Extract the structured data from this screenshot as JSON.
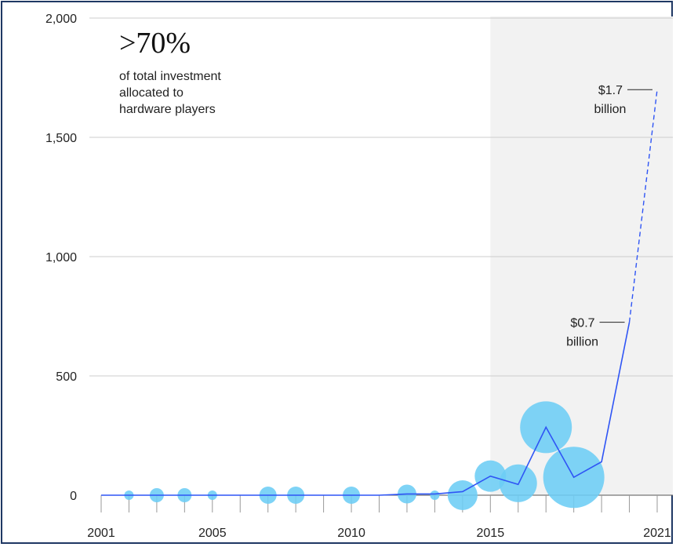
{
  "chart_data": {
    "type": "line",
    "title": "",
    "xlabel": "",
    "ylabel": "",
    "x": [
      2001,
      2002,
      2003,
      2004,
      2005,
      2006,
      2007,
      2008,
      2009,
      2010,
      2011,
      2012,
      2013,
      2014,
      2015,
      2016,
      2017,
      2018,
      2019,
      2020,
      2021
    ],
    "series": [
      {
        "values": [
          0,
          0,
          0,
          0,
          0,
          0,
          0,
          0,
          0,
          0,
          0,
          5,
          5,
          15,
          80,
          45,
          285,
          75,
          140,
          725,
          1700
        ]
      }
    ],
    "dashed_from_x": 2020,
    "bubbles": [
      {
        "x": 2002,
        "y": 0,
        "r": 6
      },
      {
        "x": 2003,
        "y": 0,
        "r": 9
      },
      {
        "x": 2004,
        "y": 0,
        "r": 9
      },
      {
        "x": 2005,
        "y": 0,
        "r": 6
      },
      {
        "x": 2007,
        "y": 0,
        "r": 11
      },
      {
        "x": 2008,
        "y": 0,
        "r": 11
      },
      {
        "x": 2010,
        "y": 0,
        "r": 11
      },
      {
        "x": 2012,
        "y": 5,
        "r": 12
      },
      {
        "x": 2013,
        "y": 0,
        "r": 6
      },
      {
        "x": 2014,
        "y": 0,
        "r": 19
      },
      {
        "x": 2015,
        "y": 80,
        "r": 20
      },
      {
        "x": 2016,
        "y": 50,
        "r": 24
      },
      {
        "x": 2017,
        "y": 285,
        "r": 33
      },
      {
        "x": 2018,
        "y": 75,
        "r": 39
      }
    ],
    "xticks": [
      "2001",
      "2005",
      "2010",
      "2015",
      "2021"
    ],
    "yticks": [
      "2,000",
      "1,500",
      "1,000",
      "500",
      "0"
    ],
    "ylim": [
      0,
      2000
    ],
    "xlim": [
      2001,
      2021
    ],
    "shaded_from_x": 2015,
    "grid": true,
    "colors": {
      "line": "#2f55f5",
      "bubble": "#6ccdf5",
      "shade": "#f2f2f2",
      "grid": "#cccccc",
      "frame": "#1f3864"
    }
  },
  "headline": {
    "value": ">70%",
    "lines": [
      "of total investment",
      "allocated to",
      "hardware players"
    ]
  },
  "annotations": [
    {
      "x": 2021,
      "y": 1700,
      "value": "$1.7",
      "unit": "billion"
    },
    {
      "x": 2020,
      "y": 725,
      "value": "$0.7",
      "unit": "billion"
    }
  ]
}
